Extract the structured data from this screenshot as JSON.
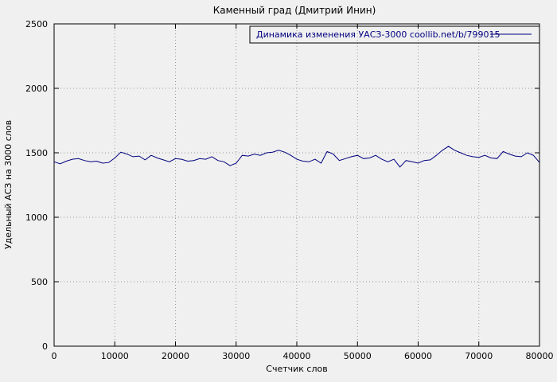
{
  "title": "Каменный град (Дмитрий Инин)",
  "legend_label": "Динамика изменения УАСЗ-3000 coollib.net/b/799015",
  "xlabel": "Счетчик слов",
  "ylabel": "Удельный АСЗ на 3000 слов",
  "colors": {
    "line": "#000080",
    "background": "#f0f0f0",
    "grid": "#999999",
    "border": "#000000",
    "legend_text": "#000080"
  },
  "chart_data": {
    "type": "line",
    "title": "Каменный град (Дмитрий Инин)",
    "xlabel": "Счетчик слов",
    "ylabel": "Удельный АСЗ на 3000 слов",
    "xlim": [
      0,
      80000
    ],
    "ylim": [
      0,
      2500
    ],
    "xticks": [
      0,
      10000,
      20000,
      30000,
      40000,
      50000,
      60000,
      70000,
      80000
    ],
    "yticks": [
      0,
      500,
      1000,
      1500,
      2000,
      2500
    ],
    "grid": true,
    "legend_position": "top-right",
    "series": [
      {
        "name": "Динамика изменения УАСЗ-3000 coollib.net/b/799015",
        "x": [
          0,
          1000,
          2000,
          3000,
          4000,
          5000,
          6000,
          7000,
          8000,
          9000,
          10000,
          11000,
          12000,
          13000,
          14000,
          15000,
          16000,
          17000,
          18000,
          19000,
          20000,
          21000,
          22000,
          23000,
          24000,
          25000,
          26000,
          27000,
          28000,
          29000,
          30000,
          31000,
          32000,
          33000,
          34000,
          35000,
          36000,
          37000,
          38000,
          39000,
          40000,
          41000,
          42000,
          43000,
          44000,
          45000,
          46000,
          47000,
          48000,
          49000,
          50000,
          51000,
          52000,
          53000,
          54000,
          55000,
          56000,
          57000,
          58000,
          59000,
          60000,
          61000,
          62000,
          63000,
          64000,
          65000,
          66000,
          67000,
          68000,
          69000,
          70000,
          71000,
          72000,
          73000,
          74000,
          75000,
          76000,
          77000,
          78000,
          79000,
          80000
        ],
        "values": [
          1430,
          1415,
          1435,
          1450,
          1455,
          1440,
          1430,
          1435,
          1420,
          1425,
          1460,
          1505,
          1490,
          1470,
          1475,
          1445,
          1480,
          1460,
          1445,
          1430,
          1455,
          1450,
          1435,
          1440,
          1455,
          1450,
          1470,
          1440,
          1430,
          1400,
          1420,
          1480,
          1475,
          1490,
          1480,
          1500,
          1505,
          1520,
          1505,
          1480,
          1450,
          1435,
          1430,
          1450,
          1420,
          1510,
          1490,
          1440,
          1455,
          1470,
          1480,
          1455,
          1460,
          1480,
          1450,
          1430,
          1450,
          1390,
          1440,
          1430,
          1420,
          1440,
          1445,
          1480,
          1520,
          1550,
          1520,
          1500,
          1480,
          1470,
          1465,
          1480,
          1460,
          1455,
          1510,
          1490,
          1475,
          1470,
          1500,
          1480,
          1425
        ]
      }
    ]
  }
}
